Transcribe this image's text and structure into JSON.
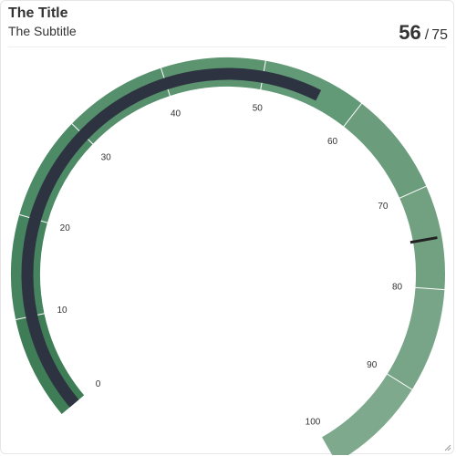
{
  "header": {
    "title": "The Title",
    "subtitle": "The Subtitle"
  },
  "kpi": {
    "value": "56",
    "separator": "/",
    "target": "75"
  },
  "chart_data": {
    "type": "gauge",
    "min": 0,
    "max": 100,
    "value": 56,
    "target": 75,
    "tick_labels": [
      "0",
      "10",
      "20",
      "30",
      "40",
      "50",
      "60",
      "70",
      "80",
      "90",
      "100"
    ],
    "band_colors": [
      "#3f7d56",
      "#468460",
      "#4d8a66",
      "#558f6b",
      "#5c9470",
      "#629976",
      "#6b9c7c",
      "#72a181",
      "#78a587",
      "#7fa98d"
    ],
    "bar_color": "#2d3340",
    "target_color": "#222222"
  }
}
